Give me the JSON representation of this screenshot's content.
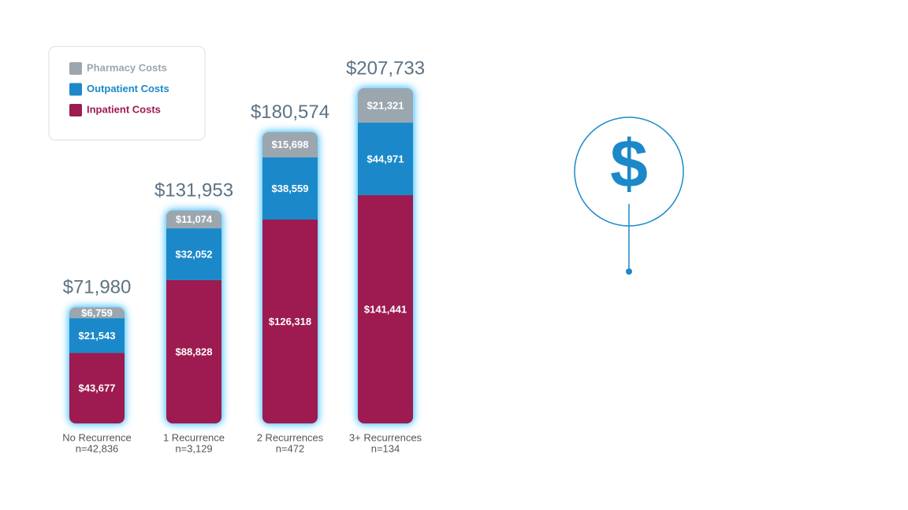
{
  "chart_data": {
    "type": "bar",
    "stacked": true,
    "categories": [
      "No Recurrence",
      "1 Recurrence",
      "2 Recurrences",
      "3+ Recurrences"
    ],
    "sample_sizes": [
      "n=42,836",
      "n=3,129",
      "n=472",
      "n=134"
    ],
    "series": [
      {
        "name": "Pharmacy Costs",
        "color": "#9ba6ae",
        "values": [
          6759,
          11074,
          15698,
          21321
        ],
        "value_labels": [
          "$6,759",
          "$11,074",
          "$15,698",
          "$21,321"
        ]
      },
      {
        "name": "Outpatient Costs",
        "color": "#1b89c9",
        "values": [
          21543,
          32052,
          38559,
          44971
        ],
        "value_labels": [
          "$21,543",
          "$32,052",
          "$38,559",
          "$44,971"
        ]
      },
      {
        "name": "Inpatient Costs",
        "color": "#9d1b50",
        "values": [
          43677,
          88828,
          126318,
          141441
        ],
        "value_labels": [
          "$43,677",
          "$88,828",
          "$126,318",
          "$141,441"
        ]
      }
    ],
    "totals": [
      71980,
      131953,
      180574,
      207733
    ],
    "total_labels": [
      "$71,980",
      "$131,953",
      "$180,574",
      "$207,733"
    ],
    "legend": "top-left"
  },
  "icon_symbol": "$"
}
